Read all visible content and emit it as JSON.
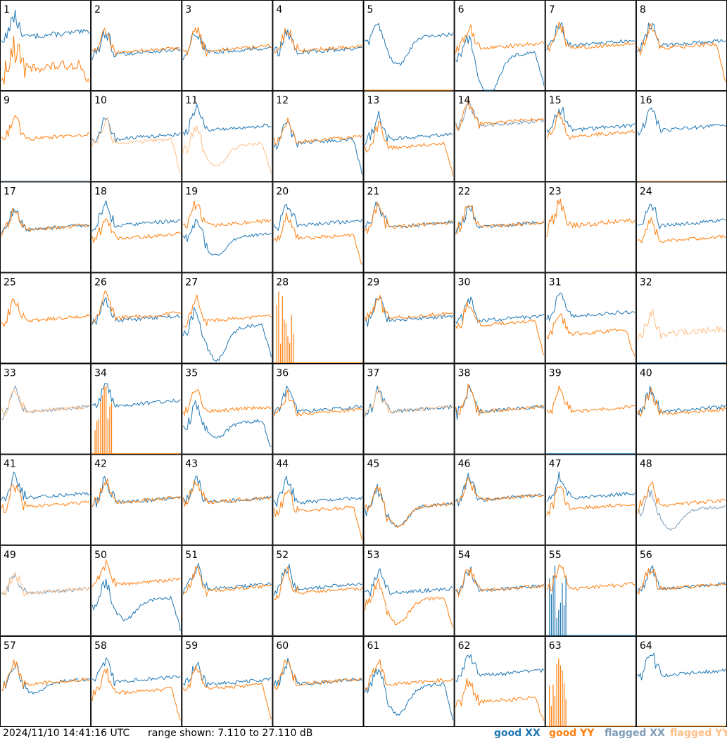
{
  "timestamp": "2024/11/10 14:41:16 UTC",
  "range_label": "range shown: 7.110 to 27.110 dB",
  "chart_data": {
    "type": "line",
    "title": "",
    "ylim_db": [
      7.11,
      27.11
    ],
    "grid_columns": 8,
    "grid_rows": 8,
    "series_styles": [
      {
        "key": "good_xx",
        "name": "good XX",
        "color": "#1f77b4"
      },
      {
        "key": "good_yy",
        "name": "good YY",
        "color": "#ff7f0e"
      },
      {
        "key": "flagged_xx",
        "name": "flagged XX",
        "color": "#7f9cb8"
      },
      {
        "key": "flagged_yy",
        "name": "flagged YY",
        "color": "#ffbf86"
      }
    ],
    "panel_labels": [
      "1",
      "2",
      "3",
      "4",
      "5",
      "6",
      "7",
      "8",
      "9",
      "10",
      "11",
      "12",
      "13",
      "14",
      "15",
      "16",
      "17",
      "18",
      "19",
      "20",
      "21",
      "22",
      "23",
      "24",
      "25",
      "26",
      "27",
      "28",
      "29",
      "30",
      "31",
      "32",
      "33",
      "34",
      "35",
      "36",
      "37",
      "38",
      "39",
      "40",
      "41",
      "42",
      "43",
      "44",
      "45",
      "46",
      "47",
      "48",
      "49",
      "50",
      "51",
      "52",
      "53",
      "54",
      "55",
      "56",
      "57",
      "58",
      "59",
      "60",
      "61",
      "62",
      "63",
      "64"
    ],
    "panels": [
      {
        "xx": "good",
        "yy": "good",
        "xx_level": 0.58,
        "yy_level": 0.22,
        "yy_edge_drop": true,
        "xx_noise": 0.5,
        "yy_noise": 0.9
      },
      {
        "xx": "good",
        "yy": "good",
        "xx_level": 0.38,
        "yy_level": 0.4
      },
      {
        "xx": "good",
        "yy": "good",
        "xx_level": 0.4,
        "yy_level": 0.42
      },
      {
        "xx": "good",
        "yy": "good",
        "xx_level": 0.4,
        "yy_level": 0.42
      },
      {
        "xx": "good",
        "yy": "good",
        "xx_level": 0.55,
        "yy_level": 0.0,
        "yy_dead": true,
        "xx_dip": 0.3
      },
      {
        "xx": "good",
        "yy": "good",
        "xx_level": 0.35,
        "yy_level": 0.45,
        "xx_dip": 0.45,
        "xx_edge_drop": true
      },
      {
        "xx": "good",
        "yy": "good",
        "xx_level": 0.48,
        "yy_level": 0.45
      },
      {
        "xx": "good",
        "yy": "good",
        "xx_level": 0.48,
        "yy_level": 0.45,
        "yy_edge_drop": true
      },
      {
        "xx": "flagged",
        "yy": "good",
        "xx_level": 0.05,
        "yy_level": 0.45,
        "xx_dead": true
      },
      {
        "xx": "good",
        "yy": "flagged",
        "xx_level": 0.45,
        "yy_level": 0.4,
        "yy_edge_drop": true
      },
      {
        "xx": "good",
        "yy": "flagged",
        "xx_level": 0.55,
        "yy_level": 0.35,
        "yy_dip": 0.2,
        "yy_edge_drop": true
      },
      {
        "xx": "good",
        "yy": "good",
        "xx_level": 0.4,
        "yy_level": 0.42,
        "xx_edge_drop": true
      },
      {
        "xx": "good",
        "yy": "good",
        "xx_level": 0.45,
        "yy_level": 0.35,
        "yy_edge_drop": true
      },
      {
        "xx": "flagged",
        "yy": "good",
        "xx_level": 0.6,
        "yy_level": 0.62
      },
      {
        "xx": "good",
        "yy": "good",
        "xx_level": 0.55,
        "yy_level": 0.48
      },
      {
        "xx": "good",
        "yy": "flagged",
        "xx_level": 0.55,
        "yy_level": 0.0,
        "yy_dead": true
      },
      {
        "xx": "good",
        "yy": "good",
        "xx_level": 0.45,
        "yy_level": 0.45
      },
      {
        "xx": "good",
        "yy": "good",
        "xx_level": 0.5,
        "yy_level": 0.35,
        "yy_edge_drop": false
      },
      {
        "xx": "good",
        "yy": "good",
        "xx_level": 0.35,
        "yy_level": 0.5,
        "xx_dip": 0.2
      },
      {
        "xx": "good",
        "yy": "good",
        "xx_level": 0.5,
        "yy_level": 0.35,
        "yy_edge_drop": true
      },
      {
        "xx": "good",
        "yy": "good",
        "xx_level": 0.48,
        "yy_level": 0.48
      },
      {
        "xx": "good",
        "yy": "good",
        "xx_level": 0.48,
        "yy_level": 0.48
      },
      {
        "xx": "flagged",
        "yy": "good",
        "xx_level": 0.1,
        "yy_level": 0.5,
        "xx_dead": true,
        "yy_noise": 0.5
      },
      {
        "xx": "good",
        "yy": "good",
        "xx_level": 0.5,
        "yy_level": 0.32
      },
      {
        "xx": "good",
        "yy": "good",
        "xx_level": 0.5,
        "yy_level": 0.45,
        "xx_hidden": true
      },
      {
        "xx": "good",
        "yy": "good",
        "xx_level": 0.45,
        "yy_level": 0.48
      },
      {
        "xx": "good",
        "yy": "good",
        "xx_level": 0.35,
        "yy_level": 0.45,
        "xx_dip": 0.35,
        "xx_edge_drop": true
      },
      {
        "xx": "good",
        "yy": "good",
        "xx_level": 0.0,
        "yy_level": 0.0,
        "xx_dead": true,
        "yy_dead": true,
        "yy_spikes_left": true
      },
      {
        "xx": "good",
        "yy": "good",
        "xx_level": 0.45,
        "yy_level": 0.48
      },
      {
        "xx": "good",
        "yy": "good",
        "xx_level": 0.45,
        "yy_level": 0.4,
        "yy_edge_drop": true
      },
      {
        "xx": "good",
        "yy": "good",
        "xx_level": 0.5,
        "yy_level": 0.3,
        "yy_edge_drop": true
      },
      {
        "xx": "good",
        "yy": "flagged",
        "xx_level": 0.0,
        "yy_level": 0.3,
        "xx_dead": true,
        "yy_noise": 0.6
      },
      {
        "xx": "flagged",
        "yy": "flagged",
        "xx_level": 0.45,
        "yy_level": 0.45
      },
      {
        "xx": "good",
        "yy": "good",
        "xx_level": 0.52,
        "yy_level": 0.0,
        "yy_dead": true,
        "yy_spikes_left": true
      },
      {
        "xx": "good",
        "yy": "good",
        "xx_level": 0.3,
        "yy_level": 0.45,
        "xx_dip": 0.15,
        "xx_edge_drop": true
      },
      {
        "xx": "good",
        "yy": "good",
        "xx_level": 0.45,
        "yy_level": 0.42
      },
      {
        "xx": "good",
        "yy": "flagged",
        "xx_level": 0.45,
        "yy_level": 0.45
      },
      {
        "xx": "good",
        "yy": "good",
        "xx_level": 0.45,
        "yy_level": 0.45
      },
      {
        "xx": "good",
        "yy": "good",
        "xx_level": 0.0,
        "yy_level": 0.45,
        "xx_dead": true
      },
      {
        "xx": "good",
        "yy": "good",
        "xx_level": 0.45,
        "yy_level": 0.42
      },
      {
        "xx": "good",
        "yy": "good",
        "xx_level": 0.5,
        "yy_level": 0.4
      },
      {
        "xx": "good",
        "yy": "good",
        "xx_level": 0.45,
        "yy_level": 0.45
      },
      {
        "xx": "good",
        "yy": "good",
        "xx_level": 0.45,
        "yy_level": 0.45
      },
      {
        "xx": "good",
        "yy": "good",
        "xx_level": 0.45,
        "yy_level": 0.35,
        "yy_edge_drop": true
      },
      {
        "xx": "good",
        "yy": "good",
        "xx_level": 0.38,
        "yy_level": 0.38,
        "xx_dip": 0.2,
        "yy_dip": 0.2
      },
      {
        "xx": "good",
        "yy": "good",
        "xx_level": 0.48,
        "yy_level": 0.48
      },
      {
        "xx": "good",
        "yy": "good",
        "xx_level": 0.5,
        "yy_level": 0.38
      },
      {
        "xx": "flagged",
        "yy": "good",
        "xx_level": 0.35,
        "yy_level": 0.42,
        "xx_dip": 0.2
      },
      {
        "xx": "flagged",
        "yy": "flagged",
        "xx_level": 0.45,
        "yy_level": 0.45
      },
      {
        "xx": "good",
        "yy": "good",
        "xx_level": 0.35,
        "yy_level": 0.55,
        "xx_dip": 0.2,
        "xx_edge_drop": true
      },
      {
        "xx": "good",
        "yy": "good",
        "xx_level": 0.5,
        "yy_level": 0.48
      },
      {
        "xx": "good",
        "yy": "good",
        "xx_level": 0.5,
        "yy_level": 0.45
      },
      {
        "xx": "good",
        "yy": "good",
        "xx_level": 0.45,
        "yy_level": 0.35,
        "yy_dip": 0.25,
        "yy_edge_drop": true
      },
      {
        "xx": "good",
        "yy": "good",
        "xx_level": 0.48,
        "yy_level": 0.48
      },
      {
        "xx": "good",
        "yy": "good",
        "xx_level": 0.0,
        "yy_level": 0.5,
        "xx_dead": true,
        "xx_spikes_left": true
      },
      {
        "xx": "good",
        "yy": "good",
        "xx_level": 0.5,
        "yy_level": 0.5
      },
      {
        "xx": "good",
        "yy": "good",
        "xx_level": 0.45,
        "yy_level": 0.45,
        "xx_dip": 0.1
      },
      {
        "xx": "good",
        "yy": "good",
        "xx_level": 0.48,
        "yy_level": 0.35,
        "yy_edge_drop": true
      },
      {
        "xx": "good",
        "yy": "good",
        "xx_level": 0.45,
        "yy_level": 0.4,
        "yy_edge_drop": true
      },
      {
        "xx": "good",
        "yy": "good",
        "xx_level": 0.45,
        "yy_level": 0.45
      },
      {
        "xx": "good",
        "yy": "good",
        "xx_level": 0.4,
        "yy_level": 0.45,
        "xx_dip": 0.3,
        "xx_edge_drop": true
      },
      {
        "xx": "good",
        "yy": "good",
        "xx_level": 0.55,
        "yy_level": 0.25,
        "yy_edge_drop": true
      },
      {
        "xx": "good",
        "yy": "good",
        "xx_level": 0.0,
        "yy_level": 0.0,
        "xx_dead": true,
        "yy_dead": true,
        "yy_spikes_left": true
      },
      {
        "xx": "good",
        "yy": "good",
        "xx_level": 0.55,
        "yy_level": 0.0,
        "yy_dead": true
      }
    ]
  }
}
